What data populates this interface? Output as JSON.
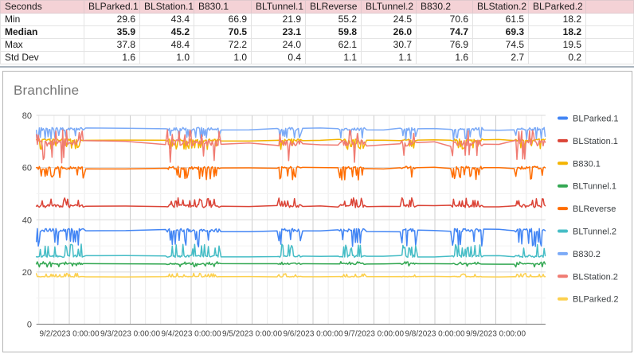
{
  "colors": {
    "header_bg": "#F4D2D6",
    "grid_major": "#d9d9d9",
    "grid_minor": "#efefef",
    "grid_vmajor": "#cccccc",
    "grid_vminor": "#ececec",
    "axis_line": "#757575",
    "axis_text": "#444444",
    "legend_text": "#3c4043",
    "title_text": "#757575"
  },
  "table": {
    "header": [
      "Seconds",
      "BLParked.1",
      "BLStation.1",
      "B830.1",
      "BLTunnel.1",
      "BLReverse",
      "BLTunnel.2",
      "B830.2",
      "BLStation.2",
      "BLParked.2"
    ],
    "rows": [
      {
        "label": "Min",
        "bold": false,
        "values": [
          "29.6",
          "43.4",
          "66.9",
          "21.9",
          "55.2",
          "24.5",
          "70.6",
          "61.5",
          "18.2"
        ]
      },
      {
        "label": "Median",
        "bold": true,
        "values": [
          "35.9",
          "45.2",
          "70.5",
          "23.1",
          "59.8",
          "26.0",
          "74.7",
          "69.3",
          "18.2"
        ]
      },
      {
        "label": "Max",
        "bold": false,
        "values": [
          "37.8",
          "48.4",
          "72.2",
          "24.0",
          "62.1",
          "30.7",
          "76.9",
          "74.5",
          "19.5"
        ]
      },
      {
        "label": "Std Dev",
        "bold": false,
        "values": [
          "1.6",
          "1.0",
          "1.0",
          "0.4",
          "1.1",
          "1.1",
          "1.6",
          "2.7",
          "0.2"
        ]
      }
    ]
  },
  "chart_data": {
    "type": "line",
    "title": "Branchline",
    "xlabel": "",
    "ylabel": "",
    "ylim": [
      0,
      80
    ],
    "yticks": [
      0,
      20,
      40,
      60,
      80
    ],
    "x_tick_labels": [
      "9/2/2023 0:00:00",
      "9/3/2023 0:00:00",
      "9/4/2023 0:00:00",
      "9/5/2023 0:00:00",
      "9/6/2023 0:00:00",
      "9/7/2023 0:00:00",
      "9/8/2023 0:00:00",
      "9/9/2023 0:00:00"
    ],
    "x_range_days": [
      1.46,
      9.816
    ],
    "grid": true,
    "legend_position": "right",
    "activity_windows_days": [
      [
        1.46,
        2.24
      ],
      [
        3.61,
        4.46
      ],
      [
        5.44,
        5.8
      ],
      [
        6.44,
        6.85
      ],
      [
        7.46,
        7.69
      ],
      [
        8.29,
        8.77
      ],
      [
        9.33,
        9.816
      ]
    ],
    "series": [
      {
        "name": "BLParked.1",
        "color": "#4285F4",
        "median": 35.9,
        "min": 29.6,
        "max": 37.8,
        "wiggle": 1.1,
        "drift": 0.9,
        "spike_dir": -1
      },
      {
        "name": "BLStation.1",
        "color": "#DB4437",
        "median": 45.2,
        "min": 43.4,
        "max": 48.4,
        "wiggle": 1.0,
        "drift": 0.6,
        "spike_dir": 1
      },
      {
        "name": "B830.1",
        "color": "#F4B400",
        "median": 70.5,
        "min": 66.9,
        "max": 72.2,
        "wiggle": 0.7,
        "drift": 0.5,
        "spike_dir": -1
      },
      {
        "name": "BLTunnel.1",
        "color": "#34A853",
        "median": 23.1,
        "min": 21.9,
        "max": 24.0,
        "wiggle": 0.5,
        "drift": 0.25,
        "spike_dir": 0
      },
      {
        "name": "BLReverse",
        "color": "#FF6D01",
        "median": 59.8,
        "min": 55.2,
        "max": 62.1,
        "wiggle": 1.0,
        "drift": 0.6,
        "spike_dir": -1
      },
      {
        "name": "BLTunnel.2",
        "color": "#46BDC6",
        "median": 26.0,
        "min": 24.5,
        "max": 30.7,
        "wiggle": 0.7,
        "drift": 0.5,
        "spike_dir": 1
      },
      {
        "name": "B830.2",
        "color": "#7BAAF7",
        "median": 74.7,
        "min": 70.6,
        "max": 76.9,
        "wiggle": 1.0,
        "drift": 0.8,
        "spike_dir": -1
      },
      {
        "name": "BLStation.2",
        "color": "#F07B72",
        "median": 69.3,
        "min": 61.5,
        "max": 74.5,
        "wiggle": 2.0,
        "drift": 2.2,
        "spike_dir": 0
      },
      {
        "name": "BLParked.2",
        "color": "#FCD04F",
        "median": 18.2,
        "min": 18.2,
        "max": 19.5,
        "wiggle": 0.2,
        "drift": 0.12,
        "spike_dir": 1
      }
    ]
  }
}
